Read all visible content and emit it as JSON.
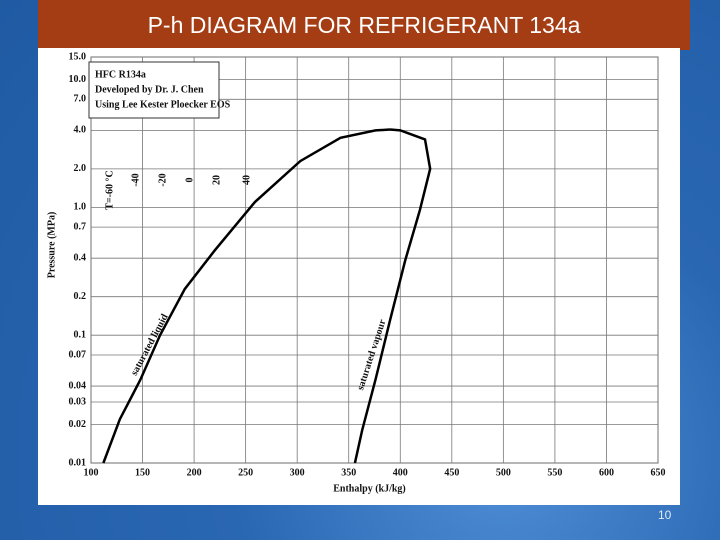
{
  "slide": {
    "title": "P-h DIAGRAM FOR REFRIGERANT 134a",
    "page_number": "10"
  },
  "chart_data": {
    "type": "line",
    "box_lines": [
      "HFC    R134a",
      "Developed by Dr. J. Chen",
      "Using Lee Kester Ploecker EOS"
    ],
    "x_label": "Enthalpy (kJ/kg)",
    "y_label": "Pressure (MPa)",
    "log_y": true,
    "grid": true,
    "xlim": [
      100,
      650
    ],
    "xticks": [
      100,
      150,
      200,
      250,
      300,
      350,
      400,
      450,
      500,
      550,
      600,
      650
    ],
    "ylim": [
      0.01,
      15
    ],
    "yticks": [
      {
        "value": 15,
        "label": "15.0"
      },
      {
        "value": 10,
        "label": "10.0"
      },
      {
        "value": 7,
        "label": "7.0"
      },
      {
        "value": 4,
        "label": "4.0"
      },
      {
        "value": 2,
        "label": "2.0"
      },
      {
        "value": 1,
        "label": "1.0"
      },
      0.7,
      0.4,
      0.2,
      0.1,
      0.07,
      0.04,
      0.03,
      0.02,
      0.01
    ],
    "annotations": [
      "T=-60 °C",
      "-40",
      "-20",
      "0",
      "20",
      "40"
    ],
    "series": [
      {
        "name": "saturated liquid",
        "color": "#000000",
        "x": [
          112,
          128,
          148,
          167,
          191,
          220,
          259,
          303,
          342,
          376,
          390
        ],
        "values": [
          0.01,
          0.022,
          0.045,
          0.1,
          0.23,
          0.46,
          1.1,
          2.3,
          3.5,
          4.0,
          4.06
        ]
      },
      {
        "name": "saturated vapour",
        "color": "#000000",
        "x": [
          390,
          400,
          424,
          429,
          419,
          405,
          390,
          376,
          363,
          356
        ],
        "values": [
          4.06,
          4.0,
          3.4,
          2.0,
          0.95,
          0.39,
          0.13,
          0.045,
          0.018,
          0.01
        ]
      }
    ]
  }
}
